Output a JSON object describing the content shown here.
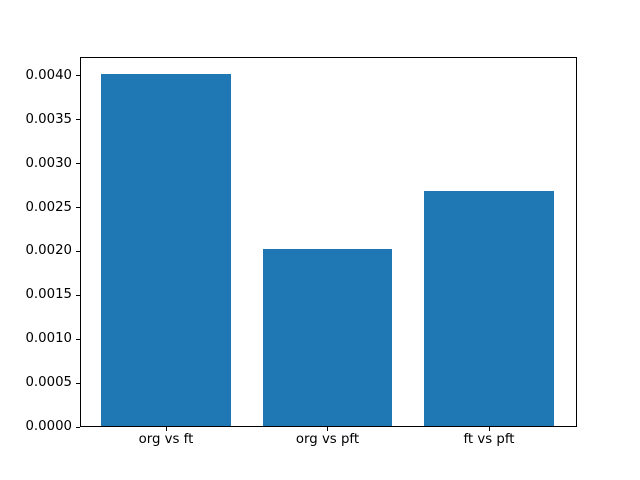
{
  "figure": {
    "background": "#ffffff"
  },
  "chart_data": {
    "type": "bar",
    "title": "",
    "xlabel": "",
    "ylabel": "",
    "categories": [
      "org vs ft",
      "org vs pft",
      "ft vs pft"
    ],
    "values": [
      0.00402,
      0.00203,
      0.00269
    ],
    "bar_color": "#1f77b4",
    "frame_color": "#000000",
    "tick_color": "#000000",
    "grid": false,
    "legend": null,
    "xlim": [
      -0.5325,
      2.5424
    ],
    "ylim": [
      0,
      0.00421
    ],
    "bar_width": 0.8,
    "y_ticks": [
      {
        "value": 0.0,
        "label": "0.0000"
      },
      {
        "value": 0.0005,
        "label": "0.0005"
      },
      {
        "value": 0.001,
        "label": "0.0010"
      },
      {
        "value": 0.0015,
        "label": "0.0015"
      },
      {
        "value": 0.002,
        "label": "0.0020"
      },
      {
        "value": 0.0025,
        "label": "0.0025"
      },
      {
        "value": 0.003,
        "label": "0.0030"
      },
      {
        "value": 0.0035,
        "label": "0.0035"
      },
      {
        "value": 0.004,
        "label": "0.0040"
      }
    ]
  }
}
